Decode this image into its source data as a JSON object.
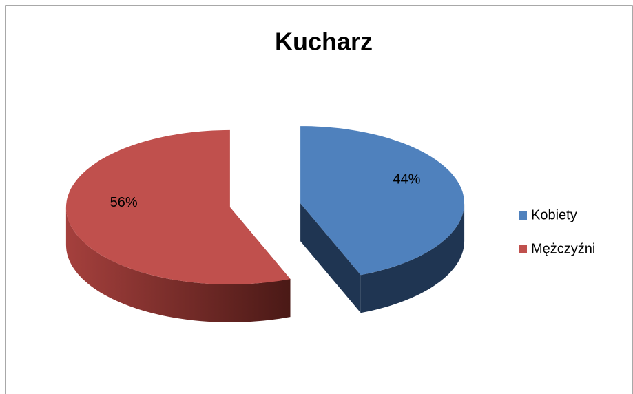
{
  "chart_data": {
    "type": "pie",
    "title": "Kucharz",
    "categories": [
      "Kobiety",
      "Mężczyźni"
    ],
    "values": [
      44,
      56
    ],
    "value_labels": [
      "44%",
      "56%"
    ],
    "colors": [
      "#4f81bd",
      "#c0504d"
    ],
    "side_colors": [
      "#1f3552",
      "#7a2e2b"
    ],
    "legend": "right"
  }
}
